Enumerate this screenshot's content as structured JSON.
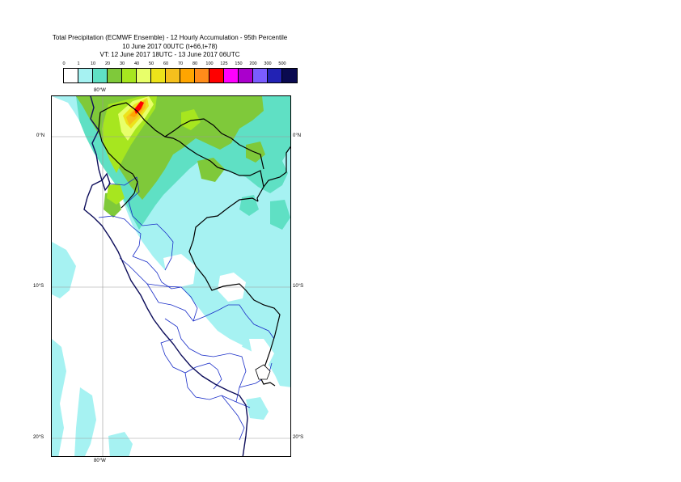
{
  "title": {
    "line1": "Total Precipitation (ECMWF Ensemble) - 12 Hourly Accumulation - 95th Percentile",
    "line2": "10 June 2017 00UTC (t+66,t+78)",
    "line3": "VT: 12 June 2017 18UTC - 13 June 2017 06UTC"
  },
  "legend": {
    "labels": [
      "0",
      "1",
      "10",
      "20",
      "30",
      "40",
      "50",
      "60",
      "70",
      "80",
      "100",
      "125",
      "150",
      "200",
      "300",
      "500"
    ],
    "colors": [
      "#ffffff",
      "#a6f2f2",
      "#5fe0c4",
      "#7fc93a",
      "#a7e61f",
      "#e8ff6a",
      "#ede31a",
      "#f5c01d",
      "#ffa500",
      "#ff8c1a",
      "#ff0000",
      "#ff00ff",
      "#aa00cc",
      "#7a5cff",
      "#2222b4",
      "#0a0a50"
    ]
  },
  "map": {
    "lon_top": "80°W",
    "lon_bottom": "80°W",
    "lat_left_1": "0°N",
    "lat_right_1": "0°N",
    "lat_left_2": "10°S",
    "lat_right_2": "10°S",
    "lat_left_3": "20°S",
    "lat_right_3": "20°S"
  }
}
